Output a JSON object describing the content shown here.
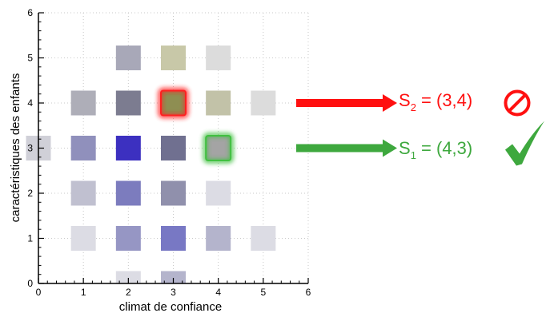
{
  "chart_data": {
    "type": "heatmap",
    "title": "",
    "xlabel": "climat de confiance",
    "ylabel": "caractéristiques des enfants",
    "xlim": [
      0,
      6
    ],
    "ylim": [
      0,
      6
    ],
    "x_ticks": [
      0,
      1,
      2,
      3,
      4,
      5,
      6
    ],
    "y_ticks": [
      0,
      1,
      2,
      3,
      4,
      5,
      6
    ],
    "grid": true,
    "cells": [
      {
        "x": 2,
        "y": 5,
        "color": "#a8a8b8"
      },
      {
        "x": 3,
        "y": 5,
        "color": "#c8c8a8"
      },
      {
        "x": 4,
        "y": 5,
        "color": "#dcdcdc"
      },
      {
        "x": 1,
        "y": 4,
        "color": "#aeaeb8"
      },
      {
        "x": 2,
        "y": 4,
        "color": "#7c7c90"
      },
      {
        "x": 3,
        "y": 4,
        "color": "#8e8e52"
      },
      {
        "x": 4,
        "y": 4,
        "color": "#c2c2a8"
      },
      {
        "x": 5,
        "y": 4,
        "color": "#dcdcdc"
      },
      {
        "x": 0,
        "y": 3,
        "color": "#d0d0d8"
      },
      {
        "x": 1,
        "y": 3,
        "color": "#9090bc"
      },
      {
        "x": 2,
        "y": 3,
        "color": "#3c30c0"
      },
      {
        "x": 3,
        "y": 3,
        "color": "#707090"
      },
      {
        "x": 4,
        "y": 3,
        "color": "#a4a4a4"
      },
      {
        "x": 1,
        "y": 2,
        "color": "#c0c0d0"
      },
      {
        "x": 2,
        "y": 2,
        "color": "#7c7cbe"
      },
      {
        "x": 3,
        "y": 2,
        "color": "#9090ac"
      },
      {
        "x": 4,
        "y": 2,
        "color": "#dcdce4"
      },
      {
        "x": 1,
        "y": 1,
        "color": "#dcdce4"
      },
      {
        "x": 2,
        "y": 1,
        "color": "#9696c4"
      },
      {
        "x": 3,
        "y": 1,
        "color": "#7878c4"
      },
      {
        "x": 4,
        "y": 1,
        "color": "#b4b4cc"
      },
      {
        "x": 5,
        "y": 1,
        "color": "#dcdce4"
      },
      {
        "x": 2,
        "y": 0,
        "color": "#dcdce4"
      },
      {
        "x": 3,
        "y": 0,
        "color": "#b4b4cc"
      }
    ],
    "highlights": [
      {
        "x": 3,
        "y": 4,
        "color": "#ff2020"
      },
      {
        "x": 4,
        "y": 3,
        "color": "#40c040"
      }
    ]
  },
  "annotations": [
    {
      "id": "s2",
      "label": "S",
      "sub": "2",
      "rest": " = (3,4)",
      "color": "#ff1010",
      "arrow_y": 4,
      "icon": "prohibited-icon"
    },
    {
      "id": "s1",
      "label": "S",
      "sub": "1",
      "rest": " = (4,3)",
      "color": "#3ea83e",
      "arrow_y": 3,
      "icon": "checkmark-icon"
    }
  ]
}
